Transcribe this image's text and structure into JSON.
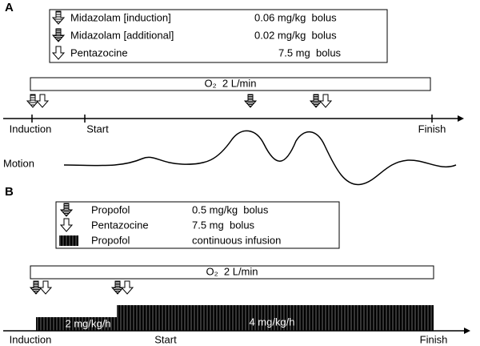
{
  "panel_a": {
    "label": "A",
    "legend": [
      {
        "drug": "Midazolam [induction]",
        "dose": "0.06 mg/kg  bolus"
      },
      {
        "drug": "Midazolam [additional]",
        "dose": "0.02 mg/kg  bolus"
      },
      {
        "drug": "Pentazocine",
        "dose": "7.5 mg  bolus"
      }
    ],
    "oxygen": "O₂  2 L/min",
    "timeline": {
      "start_label": "Induction",
      "middle_label": "Start",
      "end_label": "Finish"
    },
    "motion_label": "Motion"
  },
  "panel_b": {
    "label": "B",
    "legend": [
      {
        "drug": "Propofol",
        "dose": "0.5 mg/kg  bolus"
      },
      {
        "drug": "Pentazocine",
        "dose": "7.5 mg  bolus"
      },
      {
        "drug": "Propofol",
        "dose": "continuous infusion"
      }
    ],
    "oxygen": "O₂  2 L/min",
    "infusion": [
      "2 mg/kg/h",
      "4 mg/kg/h"
    ],
    "timeline": {
      "start_label": "Induction",
      "middle_label": "Start",
      "end_label": "Finish"
    }
  }
}
